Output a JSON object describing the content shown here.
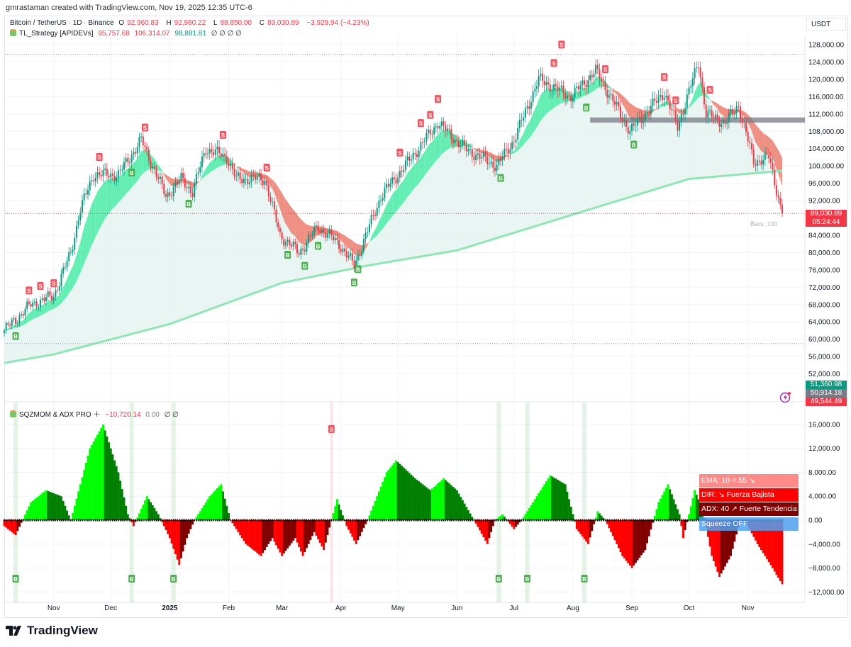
{
  "credit": "gmrastaman created with TradingView.com, Nov 19, 2025 12:35 UTC-6",
  "symbol": {
    "name": "Bitcoin / TetherUS · 1D · Binance",
    "o_label": "O",
    "o": "92,960.83",
    "h_label": "H",
    "h": "92,980.22",
    "l_label": "L",
    "l": "88,850.00",
    "c_label": "C",
    "c": "89,030.89",
    "change": "−3,929.94 (−4.23%)"
  },
  "indicator1": {
    "name": "TL_Strategy [APIDEVs]",
    "v1": "95,757.68",
    "v2": "106,314.07",
    "v3": "98,881.81",
    "rest": "∅ ∅ ∅ ∅"
  },
  "indicator2": {
    "name": "SQZMOM & ADX PRO ＋",
    "v1": "−10,720.14",
    "v2": "0.00",
    "rest": "∅ ∅"
  },
  "currency": "USDT",
  "price_tags": {
    "last": "89,030.89",
    "countdown": "05:24:44",
    "t1": "51,360.98",
    "t2": "50,914.18",
    "t3": "49,544.49"
  },
  "bars_label": "Bars: 100",
  "panel": {
    "ema": "EMA: 10 < 55 ↘",
    "dir": "DIR: ↘ Fuerza Bajista",
    "adx": "ADX: 40 ↗ Fuerte Tendencia",
    "squeeze": "Squeeze OFF"
  },
  "logo": "TradingView",
  "colors": {
    "up": "#089981",
    "down": "#f23645",
    "bull_fill": "#2ee89a",
    "bear_fill": "#f26b5b",
    "slow_line": "#8ee6b5",
    "mom_up_strong": "#00ff00",
    "mom_up_weak": "#008000",
    "mom_dn_strong": "#ff0000",
    "mom_dn_weak": "#800000",
    "ema_box": "#ff8a8a",
    "dir_box": "#ff0000",
    "adx_box": "#800000",
    "squeeze_box": "#5aaaf0"
  },
  "chart_data": [
    {
      "type": "candlestick",
      "title": "Bitcoin / TetherUS · 1D · Binance",
      "x_ticks": [
        "Nov",
        "Dec",
        "2025",
        "Feb",
        "Mar",
        "Apr",
        "May",
        "Jun",
        "Jul",
        "Aug",
        "Sep",
        "Oct",
        "Nov"
      ],
      "y_ticks": [
        "128,000.00",
        "124,000.00",
        "120,000.00",
        "116,000.00",
        "112,000.00",
        "108,000.00",
        "104,000.00",
        "100,000.00",
        "96,000.00",
        "92,000.00",
        "84,000.00",
        "80,000.00",
        "76,000.00",
        "72,000.00",
        "68,000.00",
        "64,000.00",
        "60,000.00",
        "56,000.00",
        "52,000.00"
      ],
      "ylim": [
        50000,
        130000
      ],
      "close_path": [
        [
          "2024-10-06",
          62000
        ],
        [
          "2024-10-20",
          68000
        ],
        [
          "2024-11-01",
          70000
        ],
        [
          "2024-11-10",
          80000
        ],
        [
          "2024-11-15",
          90000
        ],
        [
          "2024-11-22",
          98000
        ],
        [
          "2024-12-05",
          98000
        ],
        [
          "2024-12-17",
          106000
        ],
        [
          "2024-12-30",
          93000
        ],
        [
          "2025-01-07",
          97000
        ],
        [
          "2025-01-13",
          94000
        ],
        [
          "2025-01-20",
          104000
        ],
        [
          "2025-01-31",
          102000
        ],
        [
          "2025-02-05",
          97000
        ],
        [
          "2025-02-20",
          97000
        ],
        [
          "2025-02-28",
          84000
        ],
        [
          "2025-03-10",
          80000
        ],
        [
          "2025-03-20",
          86000
        ],
        [
          "2025-03-31",
          82000
        ],
        [
          "2025-04-08",
          77000
        ],
        [
          "2025-04-22",
          93000
        ],
        [
          "2025-05-10",
          103000
        ],
        [
          "2025-05-22",
          110000
        ],
        [
          "2025-06-05",
          104000
        ],
        [
          "2025-06-22",
          100000
        ],
        [
          "2025-07-01",
          106000
        ],
        [
          "2025-07-14",
          120000
        ],
        [
          "2025-07-31",
          116000
        ],
        [
          "2025-08-13",
          122000
        ],
        [
          "2025-08-31",
          108000
        ],
        [
          "2025-09-18",
          117000
        ],
        [
          "2025-09-25",
          109000
        ],
        [
          "2025-10-06",
          124000
        ],
        [
          "2025-10-10",
          112000
        ],
        [
          "2025-10-20",
          110000
        ],
        [
          "2025-10-27",
          114000
        ],
        [
          "2025-11-04",
          101000
        ],
        [
          "2025-11-12",
          102000
        ],
        [
          "2025-11-19",
          89030.89
        ]
      ],
      "slow_line": [
        [
          "2024-10-06",
          54500
        ],
        [
          "2024-11-01",
          56500
        ],
        [
          "2025-01-01",
          63500
        ],
        [
          "2025-03-01",
          73000
        ],
        [
          "2025-04-15",
          77000
        ],
        [
          "2025-06-01",
          80500
        ],
        [
          "2025-08-10",
          90000
        ],
        [
          "2025-10-01",
          97000
        ],
        [
          "2025-11-19",
          98881.81
        ]
      ],
      "hlines": [
        {
          "value": 125800,
          "style": "dotted"
        },
        {
          "value": 59000,
          "style": "dotted"
        },
        {
          "value": 89030.89,
          "style": "dotted-red"
        }
      ],
      "zone": {
        "from": "2025-08-10",
        "to": "2025-11-19",
        "low": 110000,
        "high": 111200
      },
      "sell_signals": [
        "2024-10-19",
        "2024-10-25",
        "2024-11-01",
        "2024-11-25",
        "2024-12-19",
        "2025-01-29",
        "2025-02-21",
        "2025-05-02",
        "2025-05-13",
        "2025-05-18",
        "2025-05-22",
        "2025-07-22",
        "2025-07-26",
        "2025-08-18",
        "2025-09-18",
        "2025-09-24",
        "2025-10-12"
      ],
      "buy_signals": [
        "2024-10-12",
        "2024-12-12",
        "2025-01-11",
        "2025-03-04",
        "2025-03-13",
        "2025-03-20",
        "2025-04-08",
        "2025-04-10",
        "2025-06-24",
        "2025-08-08",
        "2025-09-02"
      ]
    },
    {
      "type": "histogram",
      "title": "SQZMOM & ADX PRO",
      "y_ticks": [
        "16,000.00",
        "12,000.00",
        "8,000.00",
        "4,000.00",
        "0.00",
        "−4,000.00",
        "−8,000.00",
        "−12,000.00"
      ],
      "ylim": [
        -14000,
        18000
      ],
      "momentum": [
        [
          "2024-10-06",
          -1000
        ],
        [
          "2024-10-12",
          -2500
        ],
        [
          "2024-10-20",
          3000
        ],
        [
          "2024-10-28",
          5000
        ],
        [
          "2024-11-05",
          4000
        ],
        [
          "2024-11-10",
          0
        ],
        [
          "2024-11-20",
          12000
        ],
        [
          "2024-11-27",
          16000
        ],
        [
          "2024-12-05",
          8000
        ],
        [
          "2024-12-10",
          1000
        ],
        [
          "2024-12-13",
          -1000
        ],
        [
          "2024-12-20",
          4000
        ],
        [
          "2024-12-26",
          1000
        ],
        [
          "2025-01-01",
          -3000
        ],
        [
          "2025-01-06",
          -7500
        ],
        [
          "2025-01-10",
          -3000
        ],
        [
          "2025-01-14",
          0
        ],
        [
          "2025-01-22",
          4000
        ],
        [
          "2025-01-28",
          6000
        ],
        [
          "2025-02-02",
          0
        ],
        [
          "2025-02-10",
          -4000
        ],
        [
          "2025-02-18",
          -6000
        ],
        [
          "2025-02-24",
          -3000
        ],
        [
          "2025-03-01",
          -6000
        ],
        [
          "2025-03-08",
          -3000
        ],
        [
          "2025-03-12",
          -6000
        ],
        [
          "2025-03-18",
          -2000
        ],
        [
          "2025-03-23",
          -5000
        ],
        [
          "2025-03-27",
          0
        ],
        [
          "2025-03-30",
          3500
        ],
        [
          "2025-04-04",
          -1000
        ],
        [
          "2025-04-09",
          -4000
        ],
        [
          "2025-04-15",
          0
        ],
        [
          "2025-04-25",
          8000
        ],
        [
          "2025-04-30",
          10000
        ],
        [
          "2025-05-10",
          7000
        ],
        [
          "2025-05-18",
          5000
        ],
        [
          "2025-05-25",
          7000
        ],
        [
          "2025-06-01",
          5000
        ],
        [
          "2025-06-10",
          0
        ],
        [
          "2025-06-17",
          -4000
        ],
        [
          "2025-06-21",
          0
        ],
        [
          "2025-06-25",
          1000
        ],
        [
          "2025-07-01",
          -1500
        ],
        [
          "2025-07-05",
          0
        ],
        [
          "2025-07-15",
          5000
        ],
        [
          "2025-07-20",
          7500
        ],
        [
          "2025-07-28",
          6000
        ],
        [
          "2025-08-03",
          -1500
        ],
        [
          "2025-08-09",
          -4000
        ],
        [
          "2025-08-14",
          1500
        ],
        [
          "2025-08-18",
          0
        ],
        [
          "2025-08-27",
          -6000
        ],
        [
          "2025-09-01",
          -8000
        ],
        [
          "2025-09-08",
          -5000
        ],
        [
          "2025-09-15",
          3000
        ],
        [
          "2025-09-20",
          6000
        ],
        [
          "2025-09-26",
          1000
        ],
        [
          "2025-09-28",
          -3000
        ],
        [
          "2025-10-04",
          5000
        ],
        [
          "2025-10-08",
          2000
        ],
        [
          "2025-10-13",
          -6000
        ],
        [
          "2025-10-17",
          -9500
        ],
        [
          "2025-10-23",
          -6000
        ],
        [
          "2025-10-28",
          0
        ],
        [
          "2025-11-01",
          -1000
        ],
        [
          "2025-11-06",
          -4000
        ],
        [
          "2025-11-12",
          -7000
        ],
        [
          "2025-11-19",
          -10720.14
        ]
      ],
      "buy_signals": [
        "2024-10-12",
        "2024-12-12",
        "2025-01-03",
        "2025-06-23",
        "2025-07-08",
        "2025-08-07"
      ],
      "sell_signals": [
        "2025-03-27"
      ]
    }
  ]
}
